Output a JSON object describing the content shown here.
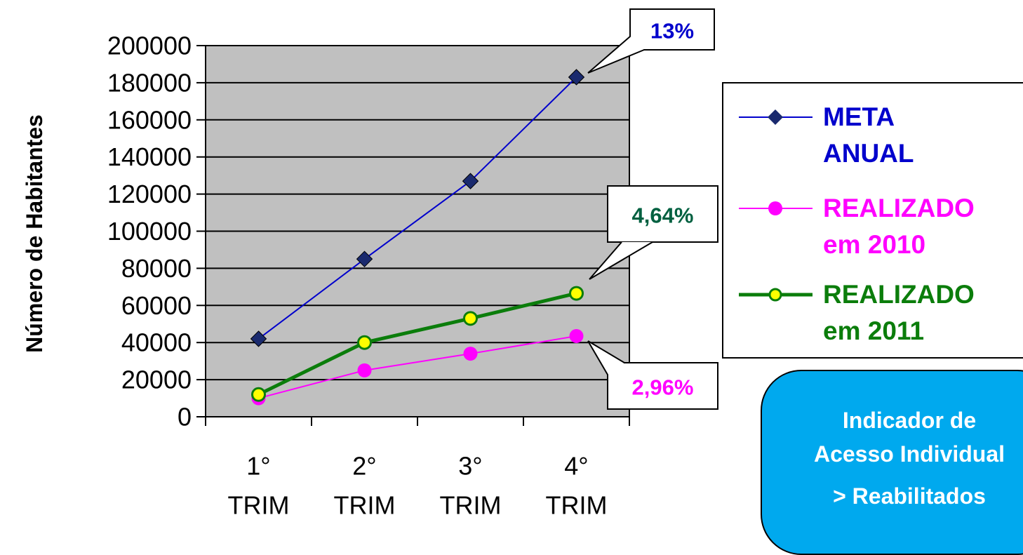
{
  "chart_data": {
    "type": "line",
    "categories": [
      "1° TRIM",
      "2° TRIM",
      "3° TRIM",
      "4° TRIM"
    ],
    "category_lines": [
      [
        "1°",
        "TRIM"
      ],
      [
        "2°",
        "TRIM"
      ],
      [
        "3°",
        "TRIM"
      ],
      [
        "4°",
        "TRIM"
      ]
    ],
    "ylabel": "Número de Habitantes",
    "ylim": [
      0,
      200000
    ],
    "yticks": [
      "0",
      "20000",
      "40000",
      "60000",
      "80000",
      "100000",
      "120000",
      "140000",
      "160000",
      "180000",
      "200000"
    ],
    "grid": true,
    "plot_background": "#c0c0c0",
    "legend_position": "right",
    "series": [
      {
        "name": "META ANUAL",
        "values": [
          42000,
          85000,
          127000,
          183000
        ],
        "color": "#0000cc",
        "marker": "diamond",
        "marker_color": "#1a2a6e"
      },
      {
        "name": "REALIZADO em 2010",
        "values": [
          10000,
          25000,
          34000,
          43500
        ],
        "color": "#ff00ff",
        "marker": "circle",
        "marker_color": "#ff00ff"
      },
      {
        "name": "REALIZADO em 2011",
        "values": [
          12000,
          40000,
          53000,
          66500
        ],
        "color": "#0b7d0b",
        "marker": "circle-open",
        "marker_color": "#ffff00"
      }
    ],
    "annotations": [
      {
        "text": "13%",
        "color": "#0000cc",
        "series": 0,
        "point": 3
      },
      {
        "text": "4,64%",
        "color": "#006040",
        "series": 2,
        "point": 3
      },
      {
        "text": "2,96%",
        "color": "#ff00ff",
        "series": 1,
        "point": 3
      }
    ]
  },
  "legend": {
    "items": [
      {
        "label": "META\nANUAL",
        "color": "#0000cc"
      },
      {
        "label": "REALIZADO\nem 2010",
        "color": "#ff00ff"
      },
      {
        "label": "REALIZADO\nem 2011",
        "color": "#0b7d0b"
      }
    ]
  },
  "indicator_box": {
    "line1": "Indicador de",
    "line2": "Acesso Individual",
    "line3": "> Reabilitados"
  }
}
